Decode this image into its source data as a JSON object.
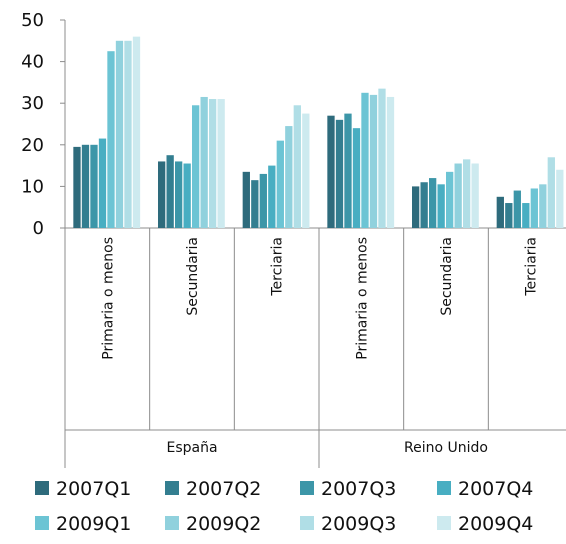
{
  "chart_data": {
    "type": "bar",
    "title": "",
    "xlabel": "",
    "ylabel": "",
    "ylim": [
      0,
      50
    ],
    "yticks": [
      0,
      10,
      20,
      30,
      40,
      50
    ],
    "grid": false,
    "legend_position": "bottom",
    "groups": [
      "España",
      "Reino Unido"
    ],
    "categories": [
      "Primaria o menos",
      "Secundaria",
      "Terciaria",
      "Primaria o menos",
      "Secundaria",
      "Terciaria"
    ],
    "series": [
      {
        "name": "2007Q1",
        "color": "#2e6b7c",
        "values": [
          19.5,
          16.0,
          13.5,
          27.0,
          10.0,
          7.5
        ]
      },
      {
        "name": "2007Q2",
        "color": "#337e90",
        "values": [
          20.0,
          17.5,
          11.5,
          26.0,
          11.0,
          6.0
        ]
      },
      {
        "name": "2007Q3",
        "color": "#3c96a8",
        "values": [
          20.0,
          16.0,
          13.0,
          27.5,
          12.0,
          9.0
        ]
      },
      {
        "name": "2007Q4",
        "color": "#48aec2",
        "values": [
          21.5,
          15.5,
          15.0,
          24.0,
          10.5,
          6.0
        ]
      },
      {
        "name": "2009Q1",
        "color": "#6cc4d4",
        "values": [
          42.5,
          29.5,
          21.0,
          32.5,
          13.5,
          9.5
        ]
      },
      {
        "name": "2009Q2",
        "color": "#90d1dd",
        "values": [
          45.0,
          31.5,
          24.5,
          32.0,
          15.5,
          10.5
        ]
      },
      {
        "name": "2009Q3",
        "color": "#b0dee6",
        "values": [
          45.0,
          31.0,
          29.5,
          33.5,
          16.5,
          17.0
        ]
      },
      {
        "name": "2009Q4",
        "color": "#cdeaef",
        "values": [
          46.0,
          31.0,
          27.5,
          31.5,
          15.5,
          14.0
        ]
      }
    ]
  }
}
